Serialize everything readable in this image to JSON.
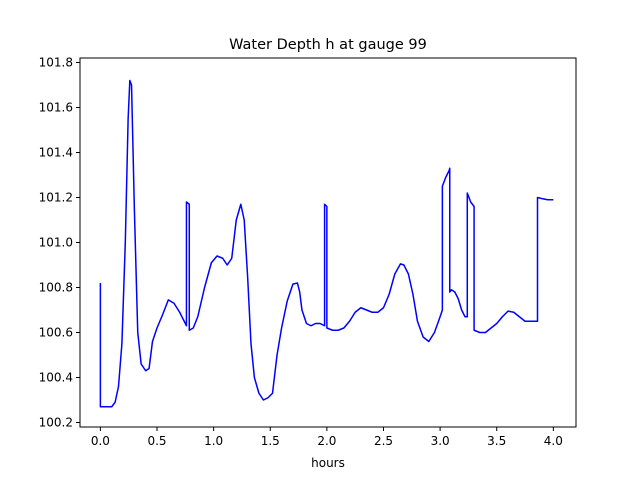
{
  "chart_data": {
    "type": "line",
    "title": "Water Depth h at gauge 99",
    "xlabel": "hours",
    "ylabel": "",
    "xlim": [
      -0.18,
      4.2
    ],
    "ylim": [
      100.18,
      101.82
    ],
    "xticks": [
      0.0,
      0.5,
      1.0,
      1.5,
      2.0,
      2.5,
      3.0,
      3.5,
      4.0
    ],
    "xtick_labels": [
      "0.0",
      "0.5",
      "1.0",
      "1.5",
      "2.0",
      "2.5",
      "3.0",
      "3.5",
      "4.0"
    ],
    "yticks": [
      100.2,
      100.4,
      100.6,
      100.8,
      101.0,
      101.2,
      101.4,
      101.6,
      101.8
    ],
    "ytick_labels": [
      "100.2",
      "100.4",
      "100.6",
      "100.8",
      "101.0",
      "101.2",
      "101.4",
      "101.6",
      "101.8"
    ],
    "grid": false,
    "series": [
      {
        "color": "#0000ff",
        "x": [
          0.0,
          0.0,
          0.05,
          0.1,
          0.13,
          0.16,
          0.19,
          0.22,
          0.245,
          0.26,
          0.275,
          0.3,
          0.33,
          0.36,
          0.4,
          0.43,
          0.46,
          0.5,
          0.55,
          0.6,
          0.65,
          0.7,
          0.76,
          0.76,
          0.785,
          0.785,
          0.82,
          0.86,
          0.92,
          0.98,
          1.03,
          1.08,
          1.12,
          1.16,
          1.2,
          1.24,
          1.27,
          1.3,
          1.33,
          1.36,
          1.4,
          1.44,
          1.48,
          1.52,
          1.56,
          1.6,
          1.65,
          1.7,
          1.74,
          1.76,
          1.78,
          1.82,
          1.86,
          1.9,
          1.94,
          1.98,
          1.98,
          2.0,
          2.0,
          2.05,
          2.1,
          2.15,
          2.2,
          2.25,
          2.3,
          2.35,
          2.4,
          2.45,
          2.5,
          2.55,
          2.6,
          2.65,
          2.68,
          2.72,
          2.76,
          2.8,
          2.85,
          2.9,
          2.95,
          3.0,
          3.02,
          3.02,
          3.05,
          3.08,
          3.085,
          3.085,
          3.1,
          3.13,
          3.16,
          3.19,
          3.22,
          3.24,
          3.24,
          3.27,
          3.3,
          3.3,
          3.35,
          3.4,
          3.45,
          3.5,
          3.55,
          3.6,
          3.65,
          3.7,
          3.75,
          3.8,
          3.85,
          3.86,
          3.86,
          3.9,
          3.95,
          4.0
        ],
        "y": [
          100.82,
          100.27,
          100.27,
          100.27,
          100.29,
          100.36,
          100.55,
          101.0,
          101.55,
          101.72,
          101.7,
          101.15,
          100.6,
          100.46,
          100.43,
          100.44,
          100.56,
          100.62,
          100.68,
          100.745,
          100.73,
          100.69,
          100.63,
          101.18,
          101.17,
          100.61,
          100.62,
          100.67,
          100.8,
          100.91,
          100.94,
          100.93,
          100.9,
          100.93,
          101.1,
          101.17,
          101.1,
          100.85,
          100.55,
          100.4,
          100.33,
          100.3,
          100.31,
          100.33,
          100.5,
          100.62,
          100.74,
          100.815,
          100.82,
          100.78,
          100.7,
          100.64,
          100.63,
          100.64,
          100.64,
          100.63,
          101.17,
          101.16,
          100.62,
          100.61,
          100.61,
          100.62,
          100.65,
          100.69,
          100.71,
          100.7,
          100.69,
          100.69,
          100.71,
          100.77,
          100.86,
          100.905,
          100.9,
          100.86,
          100.77,
          100.65,
          100.58,
          100.56,
          100.6,
          100.67,
          100.7,
          101.25,
          101.29,
          101.32,
          101.33,
          100.78,
          100.79,
          100.78,
          100.75,
          100.7,
          100.67,
          100.67,
          101.22,
          101.18,
          101.16,
          100.61,
          100.6,
          100.6,
          100.62,
          100.64,
          100.67,
          100.695,
          100.69,
          100.67,
          100.65,
          100.65,
          100.65,
          100.65,
          101.2,
          101.195,
          101.19,
          101.19
        ]
      }
    ]
  }
}
